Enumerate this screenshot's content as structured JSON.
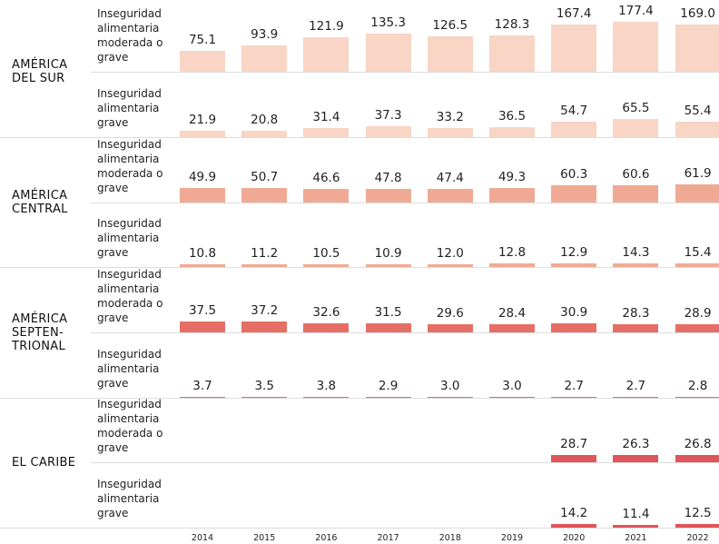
{
  "chart_data": {
    "type": "bar",
    "categories": [
      "2014",
      "2015",
      "2016",
      "2017",
      "2018",
      "2019",
      "2020",
      "2021",
      "2022"
    ],
    "regions": [
      {
        "name_lines": [
          "AMÉRICA",
          "DEL SUR"
        ],
        "color": "#f8d5c4",
        "rows": [
          {
            "label_lines": [
              "Inseguridad",
              "alimentaria",
              "moderada o",
              "grave"
            ],
            "values": [
              75.1,
              93.9,
              121.9,
              135.3,
              126.5,
              128.3,
              167.4,
              177.4,
              169.0
            ],
            "value_labels": [
              "75.1",
              "93.9",
              "121.9",
              "135.3",
              "126.5",
              "128.3",
              "167.4",
              "177.4",
              "169.0"
            ]
          },
          {
            "label_lines": [
              "Inseguridad",
              "alimentaria",
              "grave"
            ],
            "values": [
              21.9,
              20.8,
              31.4,
              37.3,
              33.2,
              36.5,
              54.7,
              65.5,
              55.4
            ],
            "value_labels": [
              "21.9",
              "20.8",
              "31.4",
              "37.3",
              "33.2",
              "36.5",
              "54.7",
              "65.5",
              "55.4"
            ]
          }
        ]
      },
      {
        "name_lines": [
          "AMÉRICA",
          "CENTRAL"
        ],
        "color": "#f0aa94",
        "rows": [
          {
            "label_lines": [
              "Inseguridad",
              "alimentaria",
              "moderada o",
              "grave"
            ],
            "values": [
              49.9,
              50.7,
              46.6,
              47.8,
              47.4,
              49.3,
              60.3,
              60.6,
              61.9
            ],
            "value_labels": [
              "49.9",
              "50.7",
              "46.6",
              "47.8",
              "47.4",
              "49.3",
              "60.3",
              "60.6",
              "61.9"
            ]
          },
          {
            "label_lines": [
              "Inseguridad",
              "alimentaria",
              "grave"
            ],
            "values": [
              10.8,
              11.2,
              10.5,
              10.9,
              12.0,
              12.8,
              12.9,
              14.3,
              15.4
            ],
            "value_labels": [
              "10.8",
              "11.2",
              "10.5",
              "10.9",
              "12.0",
              "12.8",
              "12.9",
              "14.3",
              "15.4"
            ]
          }
        ]
      },
      {
        "name_lines": [
          "AMÉRICA",
          "SEPTEN-",
          "TRIONAL"
        ],
        "color": "#e56f66",
        "rows": [
          {
            "label_lines": [
              "Inseguridad",
              "alimentaria",
              "moderada o",
              "grave"
            ],
            "values": [
              37.5,
              37.2,
              32.6,
              31.5,
              29.6,
              28.4,
              30.9,
              28.3,
              28.9
            ],
            "value_labels": [
              "37.5",
              "37.2",
              "32.6",
              "31.5",
              "29.6",
              "28.4",
              "30.9",
              "28.3",
              "28.9"
            ]
          },
          {
            "label_lines": [
              "Inseguridad",
              "alimentaria",
              "grave"
            ],
            "values": [
              3.7,
              3.5,
              3.8,
              2.9,
              3.0,
              3.0,
              2.7,
              2.7,
              2.8
            ],
            "value_labels": [
              "3.7",
              "3.5",
              "3.8",
              "2.9",
              "3.0",
              "3.0",
              "2.7",
              "2.7",
              "2.8"
            ]
          }
        ]
      },
      {
        "name_lines": [
          "EL CARIBE"
        ],
        "color": "#e0555a",
        "rows": [
          {
            "label_lines": [
              "Inseguridad",
              "alimentaria",
              "moderada o",
              "grave"
            ],
            "values": [
              null,
              null,
              null,
              null,
              null,
              null,
              28.7,
              26.3,
              26.8
            ],
            "value_labels": [
              null,
              null,
              null,
              null,
              null,
              null,
              "28.7",
              "26.3",
              "26.8"
            ]
          },
          {
            "label_lines": [
              "Inseguridad",
              "alimentaria",
              "grave"
            ],
            "values": [
              null,
              null,
              null,
              null,
              null,
              null,
              14.2,
              11.4,
              12.5
            ],
            "value_labels": [
              null,
              null,
              null,
              null,
              null,
              null,
              "14.2",
              "11.4",
              "12.5"
            ]
          }
        ]
      }
    ]
  }
}
